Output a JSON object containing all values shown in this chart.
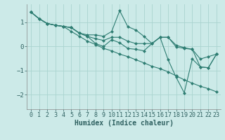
{
  "xlabel": "Humidex (Indice chaleur)",
  "bg_color": "#cceae8",
  "grid_color": "#aad4d0",
  "line_color": "#2e7d72",
  "x": [
    0,
    1,
    2,
    3,
    4,
    5,
    6,
    7,
    8,
    9,
    10,
    11,
    12,
    13,
    14,
    15,
    16,
    17,
    18,
    19,
    20,
    21,
    22,
    23
  ],
  "y_upper": [
    1.42,
    1.15,
    0.95,
    0.88,
    0.83,
    0.78,
    0.55,
    0.48,
    0.48,
    0.42,
    0.62,
    1.48,
    0.82,
    0.68,
    0.42,
    0.12,
    0.38,
    0.38,
    0.05,
    -0.05,
    -0.12,
    -0.85,
    -0.88,
    -0.32
  ],
  "y_mean": [
    1.42,
    1.15,
    0.95,
    0.88,
    0.83,
    0.78,
    0.55,
    0.42,
    0.32,
    0.25,
    0.38,
    0.38,
    0.22,
    0.12,
    0.12,
    0.12,
    0.38,
    0.38,
    -0.02,
    -0.08,
    -0.12,
    -0.52,
    -0.42,
    -0.32
  ],
  "y_lower": [
    1.42,
    1.15,
    0.95,
    0.88,
    0.83,
    0.78,
    0.55,
    0.42,
    0.12,
    0.0,
    0.28,
    0.15,
    -0.08,
    -0.12,
    -0.18,
    0.12,
    0.38,
    -0.55,
    -1.28,
    -1.92,
    -0.52,
    -0.85,
    -0.88,
    -0.32
  ],
  "y_trend": [
    1.42,
    1.15,
    0.95,
    0.88,
    0.83,
    0.62,
    0.42,
    0.22,
    0.08,
    -0.08,
    -0.18,
    -0.32,
    -0.42,
    -0.55,
    -0.68,
    -0.82,
    -0.92,
    -1.05,
    -1.22,
    -1.38,
    -1.52,
    -1.65,
    -1.75,
    -1.88
  ],
  "ylim": [
    -2.6,
    1.75
  ],
  "yticks": [
    -2,
    -1,
    0,
    1
  ],
  "xticks": [
    0,
    1,
    2,
    3,
    4,
    5,
    6,
    7,
    8,
    9,
    10,
    11,
    12,
    13,
    14,
    15,
    16,
    17,
    18,
    19,
    20,
    21,
    22,
    23
  ],
  "markersize": 2.5,
  "linewidth": 0.8,
  "xlabel_fontsize": 7,
  "tick_fontsize": 6
}
